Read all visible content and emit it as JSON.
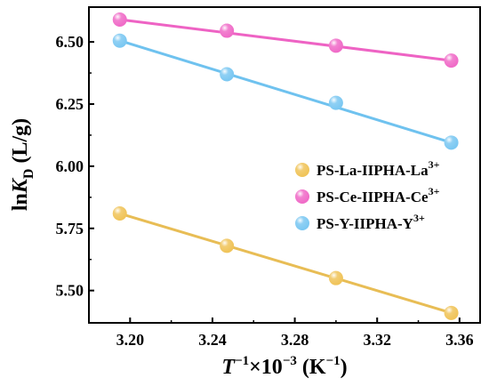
{
  "chart_data": {
    "type": "scatter",
    "xlim": [
      3.18,
      3.37
    ],
    "ylim": [
      5.37,
      6.64
    ],
    "x_ticks": [
      3.2,
      3.24,
      3.28,
      3.32,
      3.36
    ],
    "x_tick_labels": [
      "3.20",
      "3.24",
      "3.28",
      "3.32",
      "3.36"
    ],
    "y_ticks": [
      5.5,
      5.75,
      6.0,
      6.25,
      6.5
    ],
    "y_tick_labels": [
      "5.50",
      "5.75",
      "6.00",
      "6.25",
      "6.50"
    ],
    "xlabel": {
      "base": "T",
      "sup1": "−1",
      "middle": "×10",
      "sup2": "−3",
      "unit_open": " (K",
      "sup3": "−1",
      "unit_close": ")"
    },
    "ylabel": {
      "prefix": "ln",
      "italic": "K",
      "sub": "D",
      "unit": " (L/g)"
    },
    "legend_position": "center-right",
    "grid": false,
    "series": [
      {
        "name": {
          "base": "PS-La-IIPHA-La",
          "sup": "3+"
        },
        "color": "#f0c45a",
        "line_color": "#e8bd55",
        "x": [
          3.195,
          3.247,
          3.3,
          3.356
        ],
        "y": [
          5.81,
          5.68,
          5.55,
          5.41
        ],
        "fit": {
          "x": [
            3.195,
            3.356
          ],
          "y": [
            5.81,
            5.41
          ]
        }
      },
      {
        "name": {
          "base": "PS-Ce-IIPHA-Ce",
          "sup": "3+"
        },
        "color": "#f06cc8",
        "line_color": "#ee63c4",
        "x": [
          3.195,
          3.247,
          3.3,
          3.356
        ],
        "y": [
          6.59,
          6.545,
          6.485,
          6.425
        ],
        "fit": {
          "x": [
            3.195,
            3.356
          ],
          "y": [
            6.59,
            6.425
          ]
        }
      },
      {
        "name": {
          "base": "PS-Y-IIPHA-Y",
          "sup": "3+"
        },
        "color": "#7cc8f2",
        "line_color": "#6fc2ef",
        "x": [
          3.195,
          3.247,
          3.3,
          3.356
        ],
        "y": [
          6.505,
          6.37,
          6.255,
          6.095
        ],
        "fit": {
          "x": [
            3.195,
            3.356
          ],
          "y": [
            6.505,
            6.095
          ]
        }
      }
    ]
  }
}
